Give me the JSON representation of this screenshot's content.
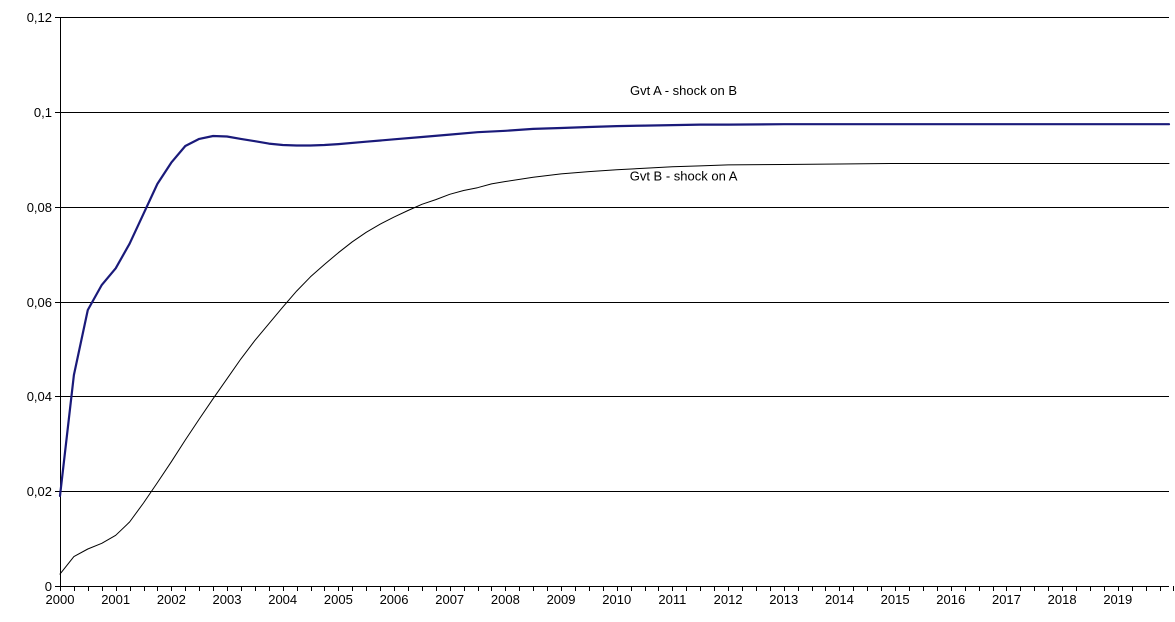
{
  "chart_data": {
    "type": "line",
    "title": "",
    "xlabel": "",
    "ylabel": "",
    "xlim": [
      2000,
      2019.92
    ],
    "ylim": [
      0,
      0.12
    ],
    "grid": "horizontal",
    "legend": "none",
    "y_ticks": [
      {
        "value": 0,
        "label": "0"
      },
      {
        "value": 0.02,
        "label": "0,02"
      },
      {
        "value": 0.04,
        "label": "0,04"
      },
      {
        "value": 0.06,
        "label": "0,06"
      },
      {
        "value": 0.08,
        "label": "0,08"
      },
      {
        "value": 0.1,
        "label": "0,1"
      },
      {
        "value": 0.12,
        "label": "0,12"
      }
    ],
    "x_ticks": [
      "2000",
      "2001",
      "2002",
      "2003",
      "2004",
      "2005",
      "2006",
      "2007",
      "2008",
      "2009",
      "2010",
      "2011",
      "2012",
      "2013",
      "2014",
      "2015",
      "2016",
      "2017",
      "2018",
      "2019"
    ],
    "series": [
      {
        "color": "#1a1a7a",
        "width": 2.2,
        "points": [
          [
            2000.0,
            0.019
          ],
          [
            2000.25,
            0.0445
          ],
          [
            2000.5,
            0.0582
          ],
          [
            2000.75,
            0.0635
          ],
          [
            2001.0,
            0.067
          ],
          [
            2001.25,
            0.0722
          ],
          [
            2001.5,
            0.0785
          ],
          [
            2001.75,
            0.0848
          ],
          [
            2002.0,
            0.0893
          ],
          [
            2002.25,
            0.0928
          ],
          [
            2002.5,
            0.0943
          ],
          [
            2002.75,
            0.0949
          ],
          [
            2003.0,
            0.0948
          ],
          [
            2003.25,
            0.0943
          ],
          [
            2003.5,
            0.0938
          ],
          [
            2003.75,
            0.0933
          ],
          [
            2004.0,
            0.093
          ],
          [
            2004.25,
            0.0929
          ],
          [
            2004.5,
            0.0929
          ],
          [
            2004.75,
            0.093
          ],
          [
            2005.0,
            0.0932
          ],
          [
            2005.5,
            0.0937
          ],
          [
            2006.0,
            0.0942
          ],
          [
            2006.5,
            0.0947
          ],
          [
            2007.0,
            0.0952
          ],
          [
            2007.5,
            0.0957
          ],
          [
            2008.0,
            0.096
          ],
          [
            2008.5,
            0.0964
          ],
          [
            2009.0,
            0.0966
          ],
          [
            2009.5,
            0.0968
          ],
          [
            2010.0,
            0.097
          ],
          [
            2010.5,
            0.0971
          ],
          [
            2011.0,
            0.0972
          ],
          [
            2011.5,
            0.0973
          ],
          [
            2012.0,
            0.0973
          ],
          [
            2013.0,
            0.0974
          ],
          [
            2014.0,
            0.0974
          ],
          [
            2015.0,
            0.0974
          ],
          [
            2016.0,
            0.0974
          ],
          [
            2017.0,
            0.0974
          ],
          [
            2018.0,
            0.0974
          ],
          [
            2019.0,
            0.0974
          ],
          [
            2019.92,
            0.0974
          ]
        ]
      },
      {
        "color": "#000000",
        "width": 1,
        "points": [
          [
            2000.0,
            0.0025
          ],
          [
            2000.25,
            0.0062
          ],
          [
            2000.5,
            0.0078
          ],
          [
            2000.75,
            0.009
          ],
          [
            2001.0,
            0.0107
          ],
          [
            2001.25,
            0.0135
          ],
          [
            2001.5,
            0.0175
          ],
          [
            2001.75,
            0.0218
          ],
          [
            2002.0,
            0.0262
          ],
          [
            2002.25,
            0.0308
          ],
          [
            2002.5,
            0.0352
          ],
          [
            2002.75,
            0.0395
          ],
          [
            2003.0,
            0.0437
          ],
          [
            2003.25,
            0.0479
          ],
          [
            2003.5,
            0.0518
          ],
          [
            2003.75,
            0.0553
          ],
          [
            2004.0,
            0.0588
          ],
          [
            2004.25,
            0.0622
          ],
          [
            2004.5,
            0.0652
          ],
          [
            2004.75,
            0.0678
          ],
          [
            2005.0,
            0.0703
          ],
          [
            2005.25,
            0.0726
          ],
          [
            2005.5,
            0.0746
          ],
          [
            2005.75,
            0.0763
          ],
          [
            2006.0,
            0.0778
          ],
          [
            2006.25,
            0.0792
          ],
          [
            2006.5,
            0.0805
          ],
          [
            2006.75,
            0.0815
          ],
          [
            2007.0,
            0.0826
          ],
          [
            2007.25,
            0.0834
          ],
          [
            2007.5,
            0.084
          ],
          [
            2007.75,
            0.0848
          ],
          [
            2008.0,
            0.0853
          ],
          [
            2008.5,
            0.0862
          ],
          [
            2009.0,
            0.0869
          ],
          [
            2009.5,
            0.0874
          ],
          [
            2010.0,
            0.0878
          ],
          [
            2010.5,
            0.0881
          ],
          [
            2011.0,
            0.0884
          ],
          [
            2011.5,
            0.0886
          ],
          [
            2012.0,
            0.0888
          ],
          [
            2013.0,
            0.0889
          ],
          [
            2014.0,
            0.089
          ],
          [
            2015.0,
            0.0891
          ],
          [
            2016.0,
            0.0891
          ],
          [
            2017.0,
            0.0891
          ],
          [
            2018.0,
            0.0891
          ],
          [
            2019.0,
            0.0891
          ],
          [
            2019.92,
            0.0891
          ]
        ]
      }
    ],
    "annotations": [
      {
        "text": "Gvt A - shock on B",
        "x": 2011.2,
        "y": 0.1035
      },
      {
        "text": "Gvt B - shock on A",
        "x": 2011.2,
        "y": 0.0855
      }
    ]
  }
}
